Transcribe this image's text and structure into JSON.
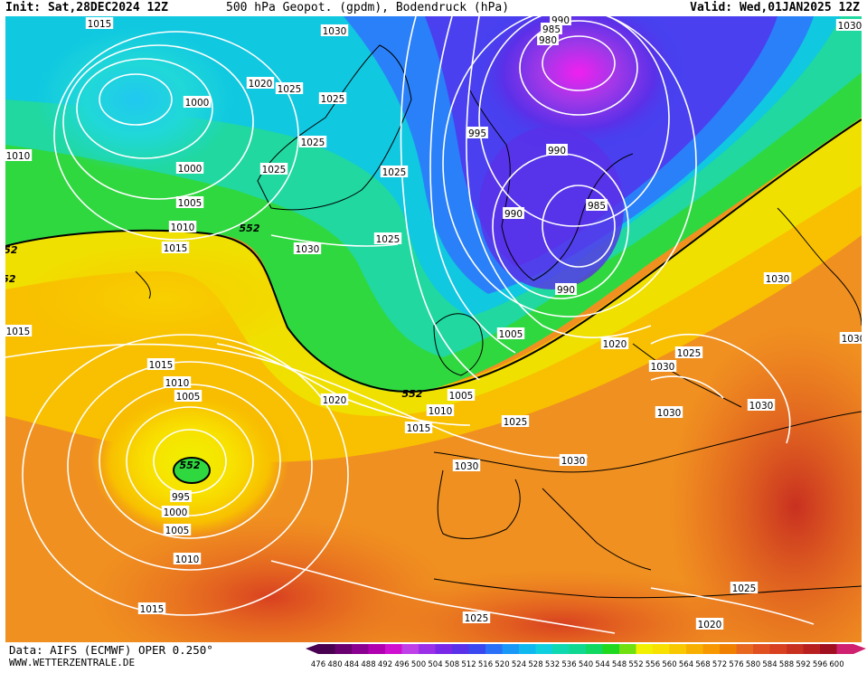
{
  "header": {
    "init": "Init: Sat,28DEC2024 12Z",
    "title": "500 hPa Geopot. (gpdm), Bodendruck (hPa)",
    "valid": "Valid: Wed,01JAN2025 12Z"
  },
  "footer": {
    "data_source": "Data: AIFS (ECMWF) OPER 0.250°",
    "website": "WWW.WETTERZENTRALE.DE"
  },
  "legend": {
    "values": [
      "476",
      "480",
      "484",
      "488",
      "492",
      "496",
      "500",
      "504",
      "508",
      "512",
      "516",
      "520",
      "524",
      "528",
      "532",
      "536",
      "540",
      "544",
      "548",
      "552",
      "556",
      "560",
      "564",
      "568",
      "572",
      "576",
      "580",
      "584",
      "588",
      "592",
      "596",
      "600"
    ],
    "colors": [
      "#4a0050",
      "#6a0070",
      "#8a0090",
      "#b000b0",
      "#d010d0",
      "#c040e8",
      "#9a30e8",
      "#7a28e8",
      "#5a30e8",
      "#3a48f0",
      "#2a70f8",
      "#1a98f8",
      "#10b8f0",
      "#10d0e0",
      "#10d8b0",
      "#10d890",
      "#10d860",
      "#20d820",
      "#70e010",
      "#f0f000",
      "#f8e000",
      "#f8c800",
      "#f8b000",
      "#f89800",
      "#f08000",
      "#e86820",
      "#e05020",
      "#d84020",
      "#c83020",
      "#b82020",
      "#a01020",
      "#d02070"
    ]
  },
  "isobar_labels": [
    {
      "text": "1015"
    },
    {
      "text": "1030"
    },
    {
      "text": "990"
    },
    {
      "text": "985"
    },
    {
      "text": "980"
    },
    {
      "text": "1030"
    },
    {
      "text": "1020"
    },
    {
      "text": "1025"
    },
    {
      "text": "1025"
    },
    {
      "text": "1000"
    },
    {
      "text": "995"
    },
    {
      "text": "1010"
    },
    {
      "text": "1025"
    },
    {
      "text": "1000"
    },
    {
      "text": "1025"
    },
    {
      "text": "1025"
    },
    {
      "text": "990"
    },
    {
      "text": "1005"
    },
    {
      "text": "990"
    },
    {
      "text": "985"
    },
    {
      "text": "1010"
    },
    {
      "text": "1015"
    },
    {
      "text": "1030"
    },
    {
      "text": "1025"
    },
    {
      "text": "990"
    },
    {
      "text": "1030"
    },
    {
      "text": "1015"
    },
    {
      "text": "1005"
    },
    {
      "text": "1020"
    },
    {
      "text": "1025"
    },
    {
      "text": "1030"
    },
    {
      "text": "1015"
    },
    {
      "text": "1010"
    },
    {
      "text": "1005"
    },
    {
      "text": "1020"
    },
    {
      "text": "1005"
    },
    {
      "text": "1010"
    },
    {
      "text": "1030"
    },
    {
      "text": "1015"
    },
    {
      "text": "1025"
    },
    {
      "text": "1030"
    },
    {
      "text": "995"
    },
    {
      "text": "1030"
    },
    {
      "text": "1000"
    },
    {
      "text": "1030"
    },
    {
      "text": "1005"
    },
    {
      "text": "1010"
    },
    {
      "text": "1015"
    },
    {
      "text": "1025"
    },
    {
      "text": "1025"
    },
    {
      "text": "1020"
    },
    {
      "text": "1030"
    }
  ],
  "geopotential_labels": [
    {
      "text": "552"
    },
    {
      "text": "552"
    },
    {
      "text": "552"
    },
    {
      "text": "552"
    },
    {
      "text": "552"
    }
  ],
  "colors": {
    "isobar": "#ffffff",
    "contour_552": "#000000",
    "coastline": "#000000"
  }
}
